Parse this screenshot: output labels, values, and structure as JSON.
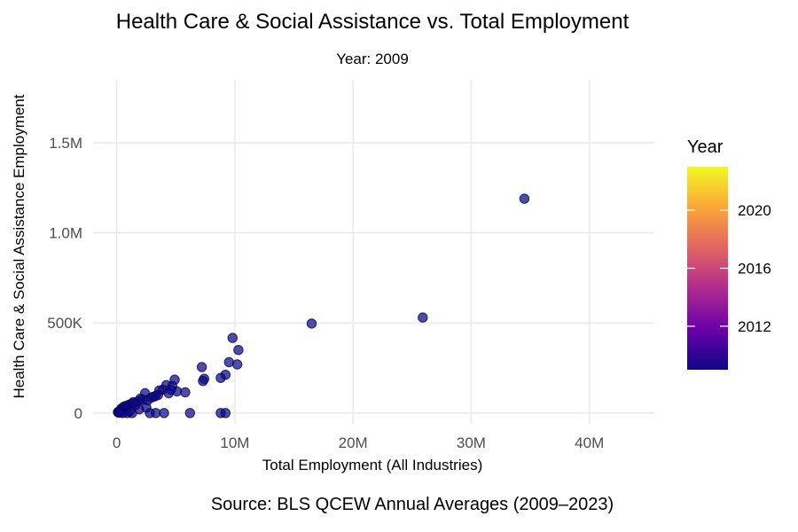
{
  "chart_data": {
    "type": "scatter",
    "title": "Health Care & Social Assistance vs. Total Employment",
    "subtitle": "Year: 2009",
    "xlabel": "Total Employment (All Industries)",
    "ylabel": "Health Care & Social Assistance Employment",
    "caption": "Source: BLS QCEW Annual Averages (2009–2023)",
    "xlim": [
      -2000000,
      45500000
    ],
    "ylim": [
      -60000,
      1850000
    ],
    "x_ticks": [
      0,
      10000000,
      20000000,
      30000000,
      40000000
    ],
    "x_tick_labels": [
      "0",
      "10M",
      "20M",
      "30M",
      "40M"
    ],
    "y_ticks": [
      0,
      500000,
      1000000,
      1500000
    ],
    "y_tick_labels": [
      "0",
      "500K",
      "1.0M",
      "1.5M"
    ],
    "grid": true,
    "point_color": "#0d0887",
    "legend": {
      "title": "Year",
      "position": "right",
      "range": [
        2009,
        2023
      ],
      "ticks": [
        2012,
        2016,
        2020
      ],
      "colors": [
        "#0d0887",
        "#6a00a8",
        "#b12a90",
        "#e16462",
        "#fca636",
        "#f0f921"
      ]
    },
    "x": [
      34500000,
      25900000,
      16500000,
      9800000,
      10300000,
      10200000,
      9500000,
      9200000,
      8800000,
      7200000,
      7400000,
      7300000,
      4900000,
      4700000,
      5100000,
      4200000,
      3900000,
      4400000,
      3600000,
      3300000,
      2400000,
      2900000,
      2000000,
      1800000,
      1500000,
      1200000,
      1000000,
      800000,
      600000,
      400000,
      200000,
      100000,
      300000,
      700000,
      1400000,
      1600000,
      2200000,
      2600000,
      3100000,
      3500000,
      4600000,
      5800000,
      6200000,
      8800000,
      9200000,
      2800000,
      3300000,
      4000000,
      1300000,
      900000,
      500000,
      1100000,
      1900000,
      2500000,
      150000,
      250000
    ],
    "y": [
      1190000,
      530000,
      497000,
      417000,
      350000,
      270000,
      282000,
      212000,
      195000,
      255000,
      190000,
      178000,
      185000,
      150000,
      120000,
      155000,
      130000,
      110000,
      125000,
      95000,
      110000,
      85000,
      80000,
      65000,
      55000,
      50000,
      45000,
      40000,
      35000,
      25000,
      10000,
      5000,
      15000,
      30000,
      60000,
      45000,
      75000,
      70000,
      90000,
      100000,
      130000,
      115000,
      0,
      0,
      0,
      0,
      0,
      0,
      0,
      0,
      0,
      10000,
      20000,
      30000,
      2000,
      3000
    ]
  }
}
